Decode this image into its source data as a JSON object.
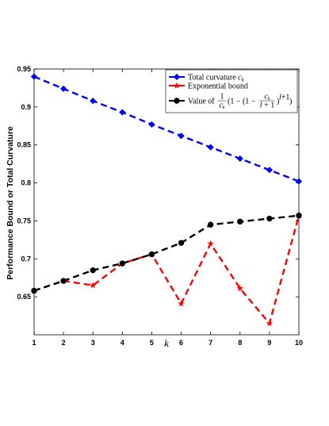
{
  "chart_data": {
    "type": "line",
    "x": [
      1,
      2,
      3,
      4,
      5,
      6,
      7,
      8,
      9,
      10
    ],
    "xlabel": "k",
    "ylabel": "Performance Bound or Total Curvature",
    "xlim": [
      1,
      10
    ],
    "ylim": [
      0.6,
      0.95
    ],
    "xticks": [
      1,
      2,
      3,
      4,
      5,
      6,
      7,
      8,
      9,
      10
    ],
    "yticks": [
      0.65,
      0.7,
      0.75,
      0.8,
      0.85,
      0.9,
      0.95
    ],
    "grid": false,
    "legend_position": "top-right",
    "series": [
      {
        "name": "Total curvature c_k",
        "color": "#0000ff",
        "marker": "diamond",
        "style": "dashed",
        "values": [
          0.94,
          0.924,
          0.908,
          0.893,
          0.877,
          0.862,
          0.847,
          0.832,
          0.817,
          0.802
        ]
      },
      {
        "name": "Exponential bound",
        "color": "#ff0000",
        "marker": "star",
        "style": "dashed",
        "values": [
          0.658,
          0.671,
          0.665,
          0.694,
          0.706,
          0.641,
          0.72,
          0.661,
          0.615,
          0.757
        ]
      },
      {
        "name": "Value of 1/c_k (1 - (1 - c_k/(l+1))^(l+1))",
        "color": "#000000",
        "marker": "circle",
        "style": "dashed",
        "values": [
          0.658,
          0.671,
          0.685,
          0.694,
          0.706,
          0.721,
          0.745,
          0.749,
          0.753,
          0.757
        ]
      }
    ]
  }
}
